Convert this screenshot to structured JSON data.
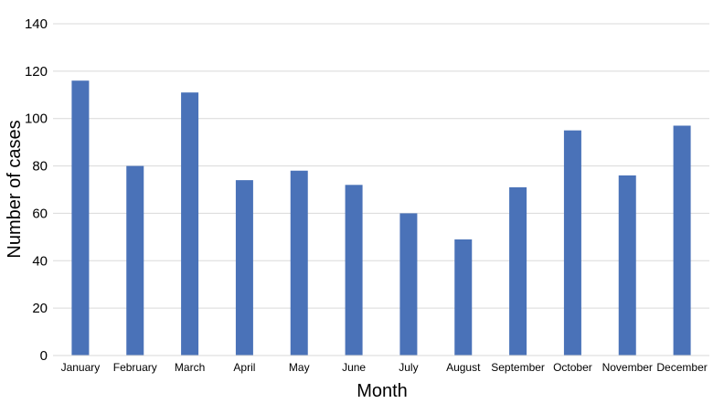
{
  "chart_data": {
    "type": "bar",
    "categories": [
      "January",
      "February",
      "March",
      "April",
      "May",
      "June",
      "July",
      "August",
      "September",
      "October",
      "November",
      "December"
    ],
    "values": [
      116,
      80,
      111,
      74,
      78,
      72,
      60,
      49,
      71,
      95,
      76,
      97
    ],
    "xlabel": "Month",
    "ylabel": "Number of cases",
    "ylim": [
      0,
      140
    ],
    "yticks": [
      0,
      20,
      40,
      60,
      80,
      100,
      120,
      140
    ],
    "grid": true,
    "legend": "none",
    "colors": {
      "bar": "#4a72b8",
      "grid": "#d9d9d9"
    }
  }
}
